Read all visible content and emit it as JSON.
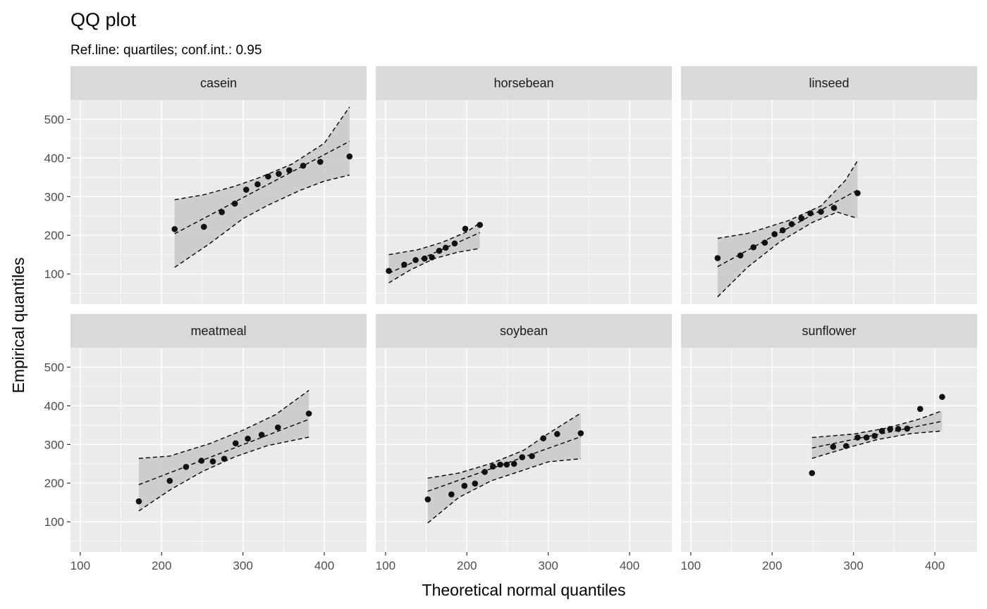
{
  "chart_data": {
    "type": "scatter",
    "title": "QQ plot",
    "subtitle": "Ref.line: quartiles; conf.int.: 0.95",
    "xlabel": "Theoretical normal quantiles",
    "ylabel": "Empirical quantiles",
    "xlim": [
      88,
      452
    ],
    "ylim": [
      22,
      550
    ],
    "x_ticks": [
      100,
      200,
      300,
      400
    ],
    "y_ticks": [
      100,
      200,
      300,
      400,
      500
    ],
    "x_tick_labels": [
      "100",
      "200",
      "300",
      "400"
    ],
    "y_tick_labels": [
      "100",
      "200",
      "300",
      "400",
      "500"
    ],
    "grid": true,
    "layout": "facet grid 2 rows x 3 columns, shared axes",
    "colors": {
      "panel_bg": "#ebebeb",
      "strip_bg": "#d9d9d9",
      "grid": "#ffffff",
      "band": "#c8c8c8",
      "points": "#111111",
      "lines": "#000000"
    },
    "panels": [
      {
        "name": "casein",
        "x": [
          216,
          252,
          274,
          290,
          304,
          318,
          331,
          344,
          357,
          374,
          395,
          431
        ],
        "y": [
          216,
          222,
          260,
          282,
          318,
          332,
          352,
          359,
          368,
          380,
          390,
          404
        ],
        "ref_line": [
          [
            216,
            204
          ],
          [
            431,
            443
          ]
        ],
        "ci_upper": [
          [
            216,
            292
          ],
          [
            252,
            305
          ],
          [
            290,
            327
          ],
          [
            320,
            349
          ],
          [
            360,
            384
          ],
          [
            400,
            438
          ],
          [
            431,
            532
          ]
        ],
        "ci_lower": [
          [
            216,
            117
          ],
          [
            260,
            180
          ],
          [
            300,
            243
          ],
          [
            330,
            277
          ],
          [
            370,
            316
          ],
          [
            400,
            340
          ],
          [
            431,
            356
          ]
        ]
      },
      {
        "name": "horsebean",
        "x": [
          104,
          123,
          137,
          148,
          157,
          166,
          174,
          185,
          198,
          216
        ],
        "y": [
          108,
          124,
          136,
          140,
          143,
          160,
          168,
          179,
          217,
          227
        ],
        "ref_line": [
          [
            104,
            102
          ],
          [
            216,
            207
          ]
        ],
        "ci_upper": [
          [
            104,
            150
          ],
          [
            140,
            163
          ],
          [
            170,
            182
          ],
          [
            200,
            209
          ],
          [
            216,
            232
          ]
        ],
        "ci_lower": [
          [
            104,
            77
          ],
          [
            130,
            110
          ],
          [
            160,
            140
          ],
          [
            190,
            157
          ],
          [
            216,
            166
          ]
        ]
      },
      {
        "name": "linseed",
        "x": [
          133,
          161,
          177,
          191,
          203,
          213,
          224,
          236,
          247,
          260,
          276,
          305
        ],
        "y": [
          141,
          148,
          169,
          181,
          203,
          213,
          229,
          244,
          257,
          261,
          271,
          309
        ],
        "ref_line": [
          [
            133,
            119
          ],
          [
            305,
            317
          ]
        ],
        "ci_upper": [
          [
            133,
            192
          ],
          [
            170,
            205
          ],
          [
            220,
            238
          ],
          [
            260,
            276
          ],
          [
            290,
            342
          ],
          [
            305,
            393
          ]
        ],
        "ci_lower": [
          [
            133,
            41
          ],
          [
            170,
            118
          ],
          [
            210,
            184
          ],
          [
            250,
            234
          ],
          [
            280,
            260
          ],
          [
            305,
            244
          ]
        ]
      },
      {
        "name": "meatmeal",
        "x": [
          172,
          210,
          230,
          249,
          263,
          277,
          291,
          306,
          323,
          343,
          381
        ],
        "y": [
          153,
          206,
          242,
          258,
          256,
          263,
          303,
          315,
          325,
          344,
          380
        ],
        "ref_line": [
          [
            172,
            196
          ],
          [
            381,
            365
          ]
        ],
        "ci_upper": [
          [
            172,
            264
          ],
          [
            210,
            270
          ],
          [
            260,
            303
          ],
          [
            300,
            337
          ],
          [
            340,
            377
          ],
          [
            381,
            440
          ]
        ],
        "ci_lower": [
          [
            172,
            128
          ],
          [
            210,
            182
          ],
          [
            250,
            230
          ],
          [
            290,
            268
          ],
          [
            330,
            297
          ],
          [
            381,
            319
          ]
        ]
      },
      {
        "name": "soybean",
        "x": [
          152,
          181,
          197,
          210,
          222,
          232,
          241,
          249,
          258,
          268,
          280,
          294,
          311,
          340
        ],
        "y": [
          158,
          171,
          193,
          199,
          229,
          243,
          248,
          248,
          250,
          267,
          270,
          316,
          327,
          329
        ],
        "ref_line": [
          [
            152,
            179
          ],
          [
            340,
            320
          ]
        ],
        "ci_upper": [
          [
            152,
            213
          ],
          [
            190,
            226
          ],
          [
            230,
            251
          ],
          [
            270,
            285
          ],
          [
            300,
            328
          ],
          [
            340,
            381
          ]
        ],
        "ci_lower": [
          [
            152,
            97
          ],
          [
            190,
            163
          ],
          [
            230,
            206
          ],
          [
            270,
            234
          ],
          [
            300,
            255
          ],
          [
            340,
            263
          ]
        ]
      },
      {
        "name": "sunflower",
        "x": [
          249,
          275,
          291,
          305,
          316,
          326,
          335,
          345,
          355,
          366,
          382,
          409
        ],
        "y": [
          226,
          294,
          296,
          318,
          318,
          322,
          335,
          340,
          340,
          341,
          392,
          423
        ],
        "ref_line": [
          [
            249,
            291
          ],
          [
            409,
            360
          ]
        ],
        "ci_upper": [
          [
            249,
            318
          ],
          [
            300,
            327
          ],
          [
            340,
            342
          ],
          [
            380,
            365
          ],
          [
            409,
            387
          ]
        ],
        "ci_lower": [
          [
            249,
            264
          ],
          [
            290,
            290
          ],
          [
            330,
            313
          ],
          [
            370,
            328
          ],
          [
            409,
            335
          ]
        ]
      }
    ]
  }
}
